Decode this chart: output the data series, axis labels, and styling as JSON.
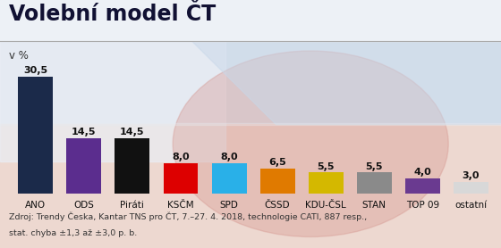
{
  "title": "Volební model ČT",
  "ylabel": "v %",
  "categories": [
    "ANO",
    "ODS",
    "Piráti",
    "KSČM",
    "SPD",
    "ČSSD",
    "KDU-ČSL",
    "STAN",
    "TOP 09",
    "ostatní"
  ],
  "values": [
    30.5,
    14.5,
    14.5,
    8.0,
    8.0,
    6.5,
    5.5,
    5.5,
    4.0,
    3.0
  ],
  "bar_colors": [
    "#1b2a4a",
    "#5b2d8e",
    "#111111",
    "#dd0000",
    "#29b0e8",
    "#e07a00",
    "#d4b800",
    "#8a8a8a",
    "#6a3a90",
    "#d8d8d8"
  ],
  "value_labels": [
    "30,5",
    "14,5",
    "14,5",
    "8,0",
    "8,0",
    "6,5",
    "5,5",
    "5,5",
    "4,0",
    "3,0"
  ],
  "footnote_line1": "Zdroj: Trendy Česka, Kantar TNS pro ČT, 7.–27. 4. 2018, technologie CATI, 887 resp.,",
  "footnote_line2": "stat. chyba ±1,3 až ±3,0 p. b.",
  "bg_top": "#e0e6f0",
  "bg_bottom": "#edd8d0",
  "title_fontsize": 17,
  "value_fontsize": 8,
  "cat_fontsize": 7.5,
  "footnote_fontsize": 6.8,
  "ylim": [
    0,
    36
  ]
}
